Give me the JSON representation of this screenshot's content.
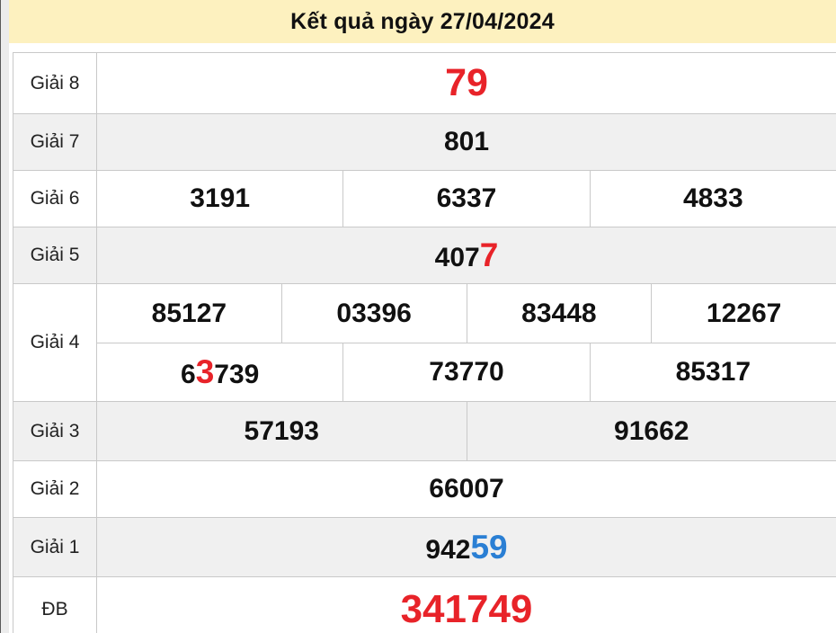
{
  "page": {
    "title": "Kết quả ngày 27/04/2024"
  },
  "colors": {
    "header_bg": "#fdf1bf",
    "row_bg": "#ffffff",
    "row_alt_bg": "#f0f0f0",
    "border": "#c9c9c9",
    "red": "#e82329",
    "blue": "#2a7fd4",
    "ink": "#111111"
  },
  "results": {
    "rows": [
      {
        "label": "Giải 8",
        "shade": false,
        "lines": [
          {
            "cells": [
              {
                "parts": [
                  {
                    "text": "79",
                    "color": "red",
                    "size": "xl"
                  }
                ]
              }
            ]
          }
        ]
      },
      {
        "label": "Giải 7",
        "shade": true,
        "lines": [
          {
            "cells": [
              {
                "parts": [
                  {
                    "text": "801"
                  }
                ]
              }
            ]
          }
        ]
      },
      {
        "label": "Giải 6",
        "shade": false,
        "lines": [
          {
            "cells": [
              {
                "parts": [
                  {
                    "text": "3191"
                  }
                ]
              },
              {
                "parts": [
                  {
                    "text": "6337"
                  }
                ]
              },
              {
                "parts": [
                  {
                    "text": "4833"
                  }
                ]
              }
            ]
          }
        ]
      },
      {
        "label": "Giải 5",
        "shade": true,
        "lines": [
          {
            "cells": [
              {
                "parts": [
                  {
                    "text": "407"
                  },
                  {
                    "text": "7",
                    "color": "red",
                    "size": "lg"
                  }
                ]
              }
            ]
          }
        ]
      },
      {
        "label": "Giải 4",
        "shade": false,
        "lines": [
          {
            "cells": [
              {
                "parts": [
                  {
                    "text": "85127"
                  }
                ]
              },
              {
                "parts": [
                  {
                    "text": "03396"
                  }
                ]
              },
              {
                "parts": [
                  {
                    "text": "83448"
                  }
                ]
              },
              {
                "parts": [
                  {
                    "text": "12267"
                  }
                ]
              }
            ]
          },
          {
            "cells": [
              {
                "parts": [
                  {
                    "text": "6"
                  },
                  {
                    "text": "3",
                    "color": "red",
                    "size": "lg"
                  },
                  {
                    "text": "739"
                  }
                ]
              },
              {
                "parts": [
                  {
                    "text": "73770"
                  }
                ]
              },
              {
                "parts": [
                  {
                    "text": "85317"
                  }
                ]
              }
            ]
          }
        ]
      },
      {
        "label": "Giải 3",
        "shade": true,
        "lines": [
          {
            "cells": [
              {
                "parts": [
                  {
                    "text": "57193"
                  }
                ]
              },
              {
                "parts": [
                  {
                    "text": "91662"
                  }
                ]
              }
            ]
          }
        ]
      },
      {
        "label": "Giải 2",
        "shade": false,
        "lines": [
          {
            "cells": [
              {
                "parts": [
                  {
                    "text": "66007"
                  }
                ]
              }
            ]
          }
        ]
      },
      {
        "label": "Giải 1",
        "shade": true,
        "lines": [
          {
            "cells": [
              {
                "parts": [
                  {
                    "text": "942"
                  },
                  {
                    "text": "59",
                    "color": "blue",
                    "size": "lg"
                  }
                ]
              }
            ]
          }
        ]
      },
      {
        "label": "ĐB",
        "shade": false,
        "lines": [
          {
            "cells": [
              {
                "parts": [
                  {
                    "text": "341749",
                    "color": "red",
                    "size": "xxl"
                  }
                ]
              }
            ]
          }
        ]
      }
    ]
  }
}
